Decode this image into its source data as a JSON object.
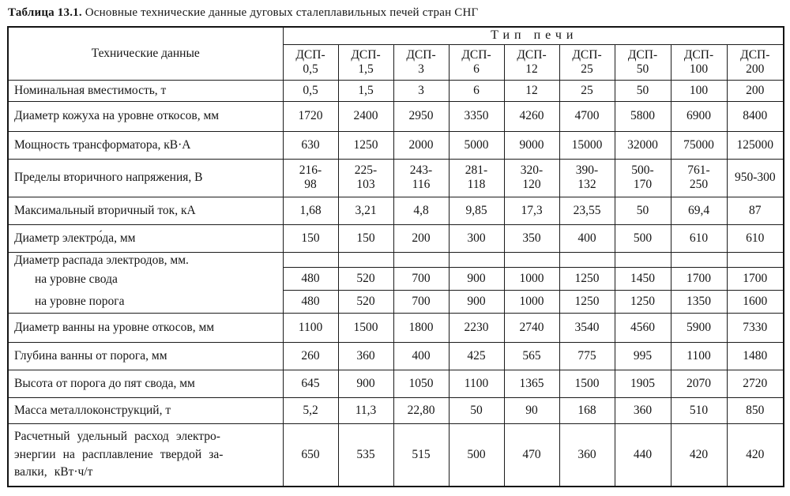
{
  "caption": {
    "number": "Таблица 13.1.",
    "text": "Основные технические данные дуговых сталеплавильных печей стран СНГ"
  },
  "table": {
    "corner_header": "Технические данные",
    "group_header": "Тип печи",
    "type_columns": [
      "ДСП-\n0,5",
      "ДСП-\n1,5",
      "ДСП-\n3",
      "ДСП-\n6",
      "ДСП-\n12",
      "ДСП-\n25",
      "ДСП-\n50",
      "ДСП-\n100",
      "ДСП-\n200"
    ],
    "rows": [
      {
        "type": "simple",
        "label": "Номинальная вместимость, т",
        "values": [
          "0,5",
          "1,5",
          "3",
          "6",
          "12",
          "25",
          "50",
          "100",
          "200"
        ]
      },
      {
        "type": "simple",
        "label": "Диаметр кожуха на уровне откосов, мм",
        "values": [
          "1720",
          "2400",
          "2950",
          "3350",
          "4260",
          "4700",
          "5800",
          "6900",
          "8400"
        ]
      },
      {
        "type": "simple",
        "label": "Мощность трансформатора, кВ·А",
        "values": [
          "630",
          "1250",
          "2000",
          "5000",
          "9000",
          "15000",
          "32000",
          "75000",
          "125000"
        ]
      },
      {
        "type": "simple",
        "label": "Пределы вторичного напряжения, В",
        "values": [
          "216-\n98",
          "225-\n103",
          "243-\n116",
          "281-\n118",
          "320-\n120",
          "390-\n132",
          "500-\n170",
          "761-\n250",
          "950-300"
        ]
      },
      {
        "type": "simple",
        "label": "Максимальный вторичный ток, кА",
        "values": [
          "1,68",
          "3,21",
          "4,8",
          "9,85",
          "17,3",
          "23,55",
          "50",
          "69,4",
          "87"
        ]
      },
      {
        "type": "simple",
        "label": "Диаметр электро́да, мм",
        "values": [
          "150",
          "150",
          "200",
          "300",
          "350",
          "400",
          "500",
          "610",
          "610"
        ]
      },
      {
        "type": "group",
        "label": "Диаметр распада электродов, мм.",
        "sub_rows": [
          {
            "label": "на уровне свода",
            "values": [
              "480",
              "520",
              "700",
              "900",
              "1000",
              "1250",
              "1450",
              "1700",
              "1700"
            ]
          },
          {
            "label": "на уровне порога",
            "values": [
              "480",
              "520",
              "700",
              "900",
              "1000",
              "1250",
              "1250",
              "1350",
              "1600"
            ]
          }
        ]
      },
      {
        "type": "simple",
        "label": "Диаметр ванны на уровне откосов, мм",
        "values": [
          "1100",
          "1500",
          "1800",
          "2230",
          "2740",
          "3540",
          "4560",
          "5900",
          "7330"
        ]
      },
      {
        "type": "simple",
        "label": "Глубина ванны от порога, мм",
        "values": [
          "260",
          "360",
          "400",
          "425",
          "565",
          "775",
          "995",
          "1100",
          "1480"
        ]
      },
      {
        "type": "simple",
        "label": "Высота от порога до пят свода, мм",
        "values": [
          "645",
          "900",
          "1050",
          "1100",
          "1365",
          "1500",
          "1905",
          "2070",
          "2720"
        ]
      },
      {
        "type": "simple",
        "label": "Масса металлоконструкций, т",
        "values": [
          "5,2",
          "11,3",
          "22,80",
          "50",
          "90",
          "168",
          "360",
          "510",
          "850"
        ]
      },
      {
        "type": "simple",
        "justify": true,
        "label": "Расчетный удельный расход электро-\nэнергии на расплавление твердой за-\nвалки, кВт·ч/т",
        "values": [
          "650",
          "535",
          "515",
          "500",
          "470",
          "360",
          "440",
          "420",
          "420"
        ]
      }
    ]
  }
}
